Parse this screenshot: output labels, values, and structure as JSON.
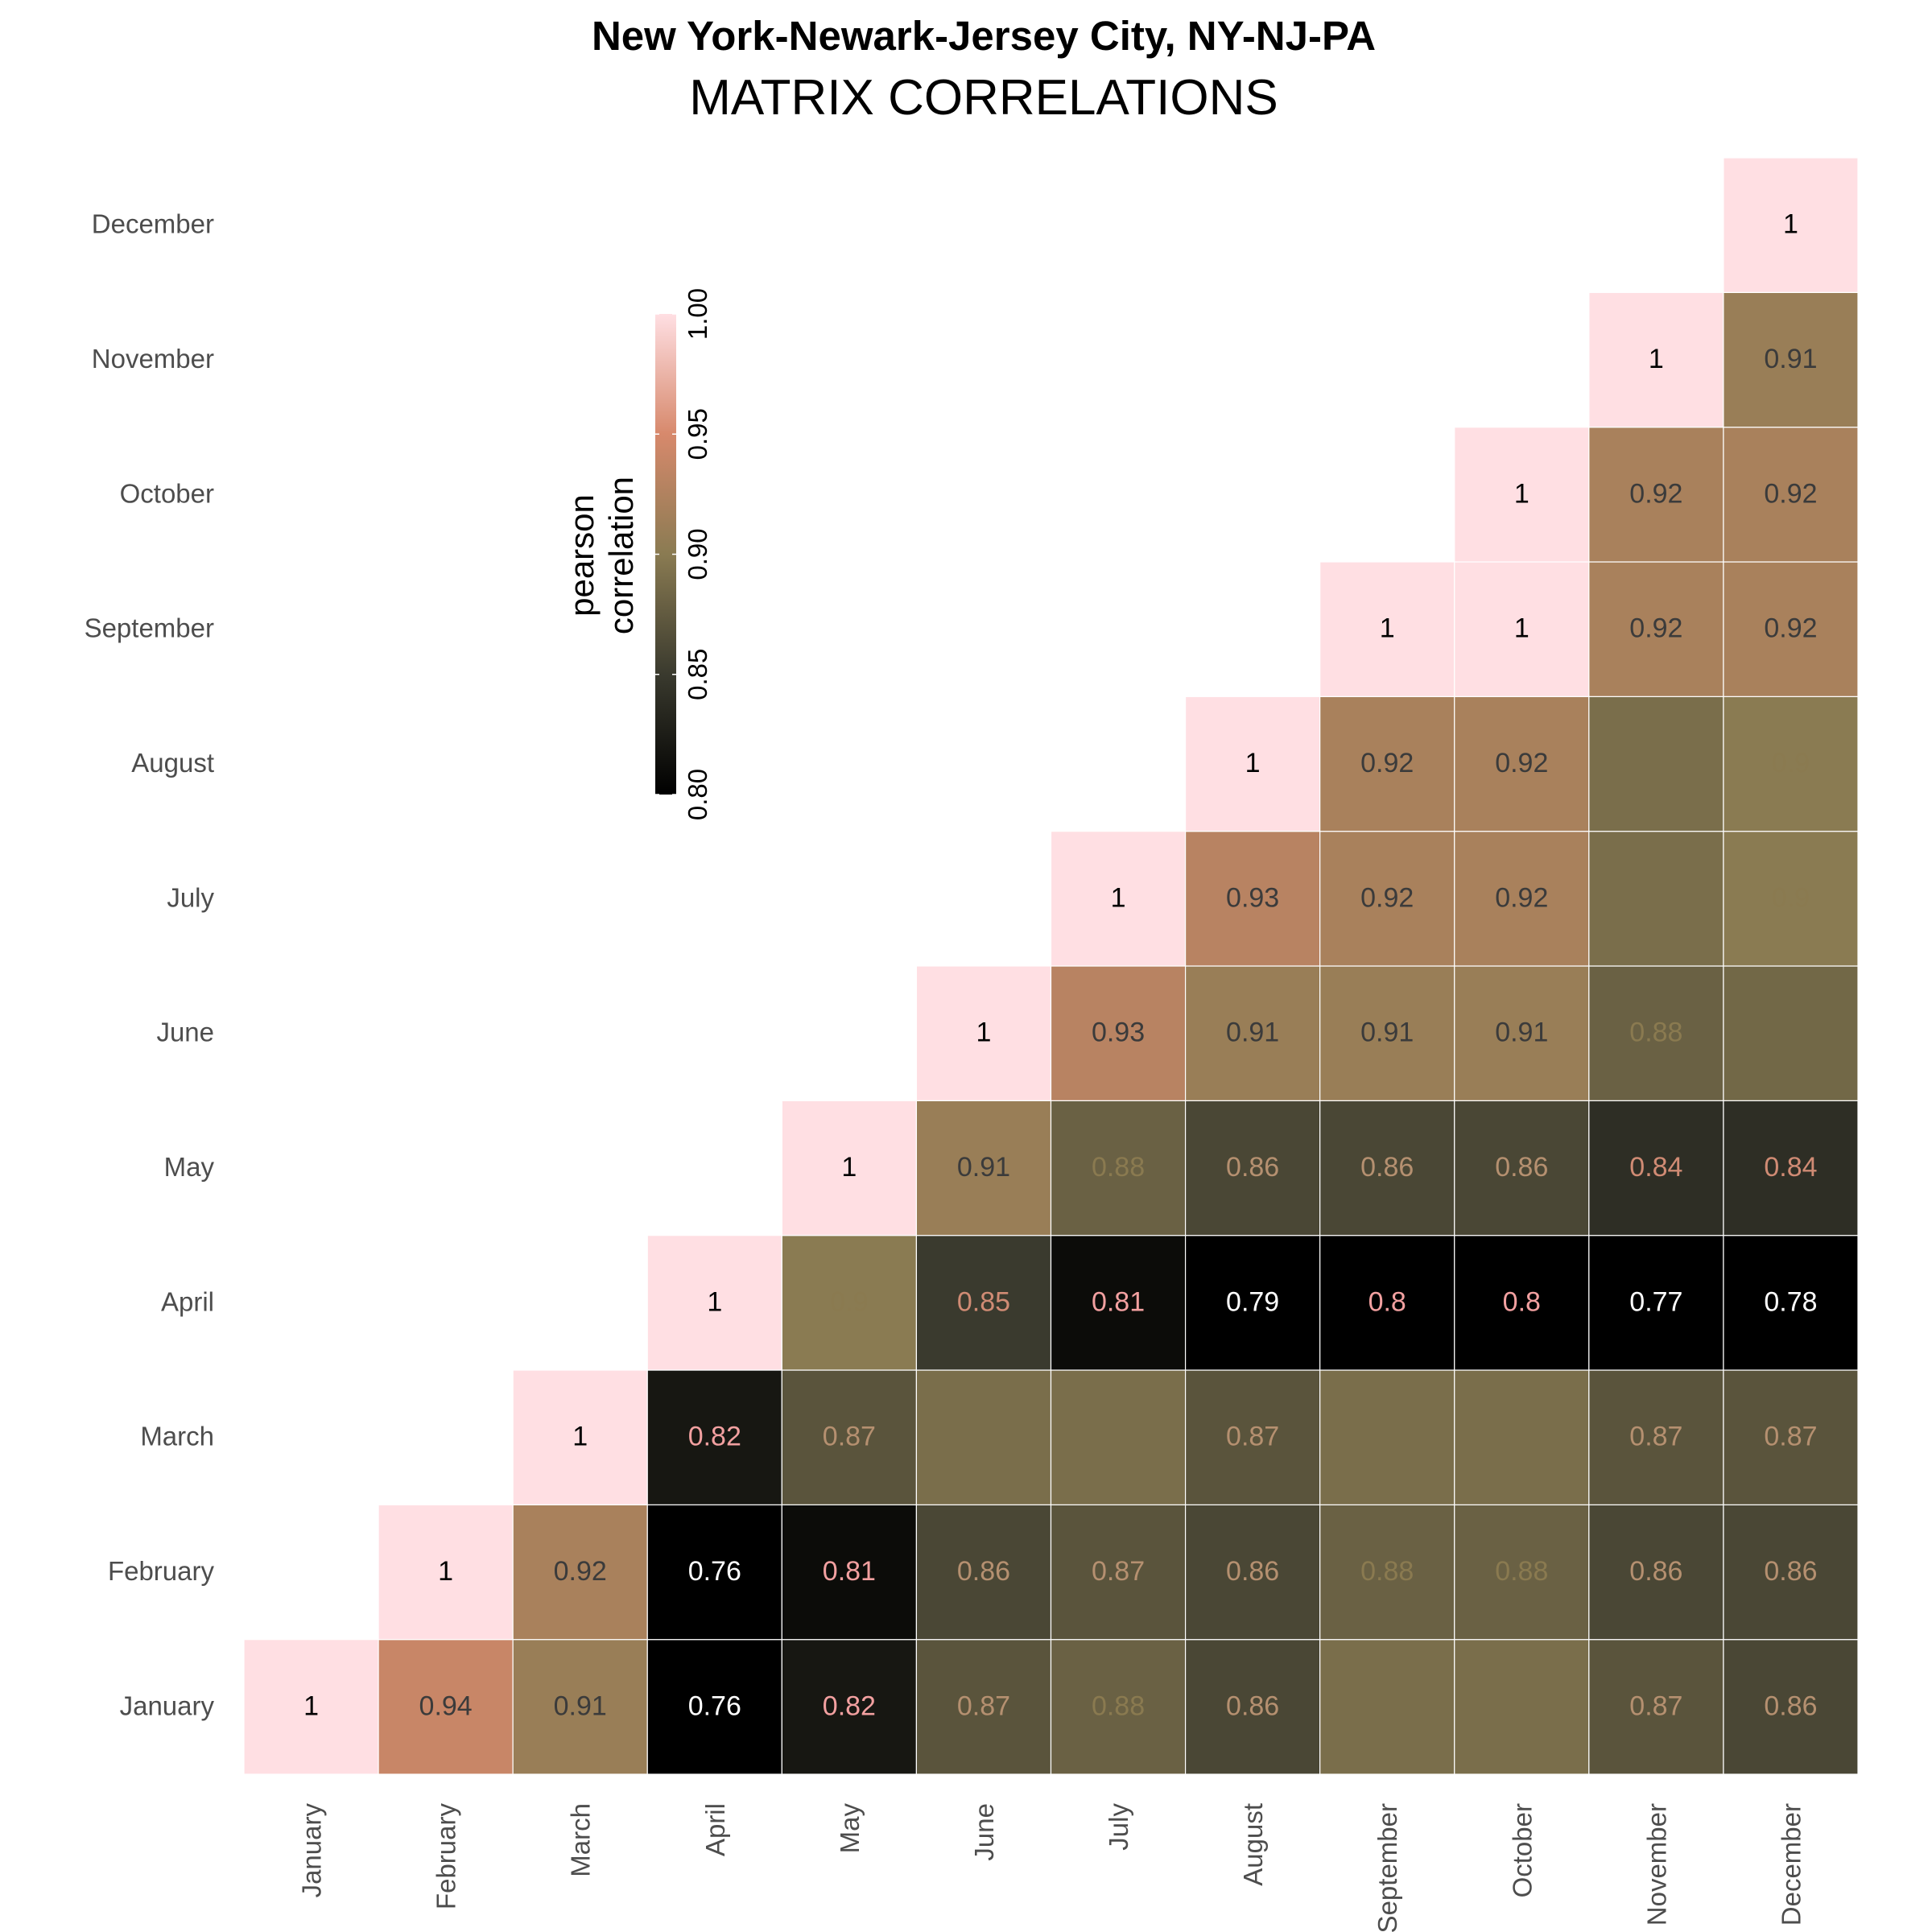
{
  "chart_data": {
    "type": "heatmap",
    "title": "New York-Newark-Jersey City, NY-NJ-PA",
    "subtitle": "MATRIX CORRELATIONS",
    "x_categories": [
      "January",
      "February",
      "March",
      "April",
      "May",
      "June",
      "July",
      "August",
      "September",
      "October",
      "November",
      "December"
    ],
    "y_categories": [
      "January",
      "February",
      "March",
      "April",
      "May",
      "June",
      "July",
      "August",
      "September",
      "October",
      "November",
      "December"
    ],
    "triangle": "upper",
    "cells": [
      {
        "x": "January",
        "y": "January",
        "value": 1,
        "label": "1"
      },
      {
        "x": "February",
        "y": "January",
        "value": 0.94,
        "label": "0.94"
      },
      {
        "x": "March",
        "y": "January",
        "value": 0.91,
        "label": "0.91"
      },
      {
        "x": "April",
        "y": "January",
        "value": 0.76,
        "label": "0.76"
      },
      {
        "x": "May",
        "y": "January",
        "value": 0.82,
        "label": "0.82"
      },
      {
        "x": "June",
        "y": "January",
        "value": 0.87,
        "label": "0.87"
      },
      {
        "x": "July",
        "y": "January",
        "value": 0.88,
        "label": "0.88"
      },
      {
        "x": "August",
        "y": "January",
        "value": 0.86,
        "label": "0.86"
      },
      {
        "x": "September",
        "y": "January",
        "value": 0.89,
        "label": ""
      },
      {
        "x": "October",
        "y": "January",
        "value": 0.89,
        "label": ""
      },
      {
        "x": "November",
        "y": "January",
        "value": 0.87,
        "label": "0.87"
      },
      {
        "x": "December",
        "y": "January",
        "value": 0.86,
        "label": "0.86"
      },
      {
        "x": "February",
        "y": "February",
        "value": 1,
        "label": "1"
      },
      {
        "x": "March",
        "y": "February",
        "value": 0.92,
        "label": "0.92"
      },
      {
        "x": "April",
        "y": "February",
        "value": 0.76,
        "label": "0.76"
      },
      {
        "x": "May",
        "y": "February",
        "value": 0.81,
        "label": "0.81"
      },
      {
        "x": "June",
        "y": "February",
        "value": 0.86,
        "label": "0.86"
      },
      {
        "x": "July",
        "y": "February",
        "value": 0.87,
        "label": "0.87"
      },
      {
        "x": "August",
        "y": "February",
        "value": 0.86,
        "label": "0.86"
      },
      {
        "x": "September",
        "y": "February",
        "value": 0.88,
        "label": "0.88"
      },
      {
        "x": "October",
        "y": "February",
        "value": 0.88,
        "label": "0.88"
      },
      {
        "x": "November",
        "y": "February",
        "value": 0.86,
        "label": "0.86"
      },
      {
        "x": "December",
        "y": "February",
        "value": 0.86,
        "label": "0.86"
      },
      {
        "x": "March",
        "y": "March",
        "value": 1,
        "label": "1"
      },
      {
        "x": "April",
        "y": "March",
        "value": 0.82,
        "label": "0.82"
      },
      {
        "x": "May",
        "y": "March",
        "value": 0.87,
        "label": "0.87"
      },
      {
        "x": "June",
        "y": "March",
        "value": 0.89,
        "label": ""
      },
      {
        "x": "July",
        "y": "March",
        "value": 0.89,
        "label": ""
      },
      {
        "x": "August",
        "y": "March",
        "value": 0.87,
        "label": "0.87"
      },
      {
        "x": "September",
        "y": "March",
        "value": 0.89,
        "label": ""
      },
      {
        "x": "October",
        "y": "March",
        "value": 0.89,
        "label": ""
      },
      {
        "x": "November",
        "y": "March",
        "value": 0.87,
        "label": "0.87"
      },
      {
        "x": "December",
        "y": "March",
        "value": 0.87,
        "label": "0.87"
      },
      {
        "x": "April",
        "y": "April",
        "value": 1,
        "label": "1"
      },
      {
        "x": "May",
        "y": "April",
        "value": 0.9,
        "label": "0.9"
      },
      {
        "x": "June",
        "y": "April",
        "value": 0.85,
        "label": "0.85"
      },
      {
        "x": "July",
        "y": "April",
        "value": 0.81,
        "label": "0.81"
      },
      {
        "x": "August",
        "y": "April",
        "value": 0.79,
        "label": "0.79"
      },
      {
        "x": "September",
        "y": "April",
        "value": 0.8,
        "label": "0.8"
      },
      {
        "x": "October",
        "y": "April",
        "value": 0.8,
        "label": "0.8"
      },
      {
        "x": "November",
        "y": "April",
        "value": 0.77,
        "label": "0.77"
      },
      {
        "x": "December",
        "y": "April",
        "value": 0.78,
        "label": "0.78"
      },
      {
        "x": "May",
        "y": "May",
        "value": 1,
        "label": "1"
      },
      {
        "x": "June",
        "y": "May",
        "value": 0.91,
        "label": "0.91"
      },
      {
        "x": "July",
        "y": "May",
        "value": 0.88,
        "label": "0.88"
      },
      {
        "x": "August",
        "y": "May",
        "value": 0.86,
        "label": "0.86"
      },
      {
        "x": "September",
        "y": "May",
        "value": 0.86,
        "label": "0.86"
      },
      {
        "x": "October",
        "y": "May",
        "value": 0.86,
        "label": "0.86"
      },
      {
        "x": "November",
        "y": "May",
        "value": 0.84,
        "label": "0.84"
      },
      {
        "x": "December",
        "y": "May",
        "value": 0.84,
        "label": "0.84"
      },
      {
        "x": "June",
        "y": "June",
        "value": 1,
        "label": "1"
      },
      {
        "x": "July",
        "y": "June",
        "value": 0.93,
        "label": "0.93"
      },
      {
        "x": "August",
        "y": "June",
        "value": 0.91,
        "label": "0.91"
      },
      {
        "x": "September",
        "y": "June",
        "value": 0.91,
        "label": "0.91"
      },
      {
        "x": "October",
        "y": "June",
        "value": 0.91,
        "label": "0.91"
      },
      {
        "x": "November",
        "y": "June",
        "value": 0.88,
        "label": "0.88"
      },
      {
        "x": "December",
        "y": "June",
        "value": 0.885,
        "label": ""
      },
      {
        "x": "July",
        "y": "July",
        "value": 1,
        "label": "1"
      },
      {
        "x": "August",
        "y": "July",
        "value": 0.93,
        "label": "0.93"
      },
      {
        "x": "September",
        "y": "July",
        "value": 0.92,
        "label": "0.92"
      },
      {
        "x": "October",
        "y": "July",
        "value": 0.92,
        "label": "0.92"
      },
      {
        "x": "November",
        "y": "July",
        "value": 0.89,
        "label": ""
      },
      {
        "x": "December",
        "y": "July",
        "value": 0.9,
        "label": "0.9"
      },
      {
        "x": "August",
        "y": "August",
        "value": 1,
        "label": "1"
      },
      {
        "x": "September",
        "y": "August",
        "value": 0.92,
        "label": "0.92"
      },
      {
        "x": "October",
        "y": "August",
        "value": 0.92,
        "label": "0.92"
      },
      {
        "x": "November",
        "y": "August",
        "value": 0.89,
        "label": ""
      },
      {
        "x": "December",
        "y": "August",
        "value": 0.9,
        "label": "0.9"
      },
      {
        "x": "September",
        "y": "September",
        "value": 1,
        "label": "1"
      },
      {
        "x": "October",
        "y": "September",
        "value": 1,
        "label": "1"
      },
      {
        "x": "November",
        "y": "September",
        "value": 0.92,
        "label": "0.92"
      },
      {
        "x": "December",
        "y": "September",
        "value": 0.92,
        "label": "0.92"
      },
      {
        "x": "October",
        "y": "October",
        "value": 1,
        "label": "1"
      },
      {
        "x": "November",
        "y": "October",
        "value": 0.92,
        "label": "0.92"
      },
      {
        "x": "December",
        "y": "October",
        "value": 0.92,
        "label": "0.92"
      },
      {
        "x": "November",
        "y": "November",
        "value": 1,
        "label": "1"
      },
      {
        "x": "December",
        "y": "November",
        "value": 0.91,
        "label": "0.91"
      },
      {
        "x": "December",
        "y": "December",
        "value": 1,
        "label": "1"
      }
    ],
    "legend": {
      "title_lines": [
        "pearson",
        "correlation"
      ],
      "ticks": [
        0.8,
        0.85,
        0.9,
        0.95,
        1.0
      ],
      "tick_labels": [
        "0.80",
        "0.85",
        "0.90",
        "0.95",
        "1.00"
      ],
      "range": [
        0.8,
        1.0
      ],
      "position": "upper-left-inside",
      "stops": [
        {
          "value": 0.8,
          "color": "#000000"
        },
        {
          "value": 0.85,
          "color": "#3a3a2e"
        },
        {
          "value": 0.9,
          "color": "#8a7b52"
        },
        {
          "value": 0.95,
          "color": "#d7896c"
        },
        {
          "value": 1.0,
          "color": "#ffdfe3"
        }
      ]
    },
    "grid": false
  }
}
